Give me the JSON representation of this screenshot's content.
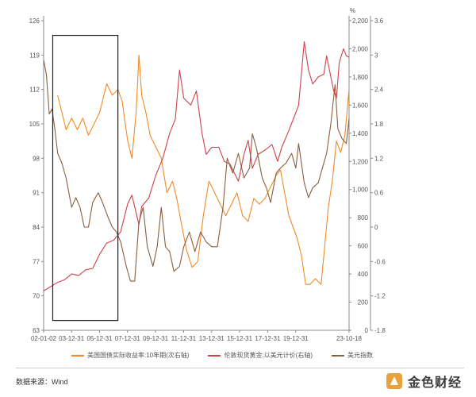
{
  "chart_data": {
    "type": "line",
    "title": "",
    "left_axis": {
      "min": 63,
      "max": 126,
      "ticks": [
        63,
        70,
        77,
        84,
        91,
        98,
        105,
        112,
        119,
        126
      ]
    },
    "right_axis_1": {
      "unit": "",
      "min": 0,
      "max": 2200,
      "ticks": [
        0,
        200,
        400,
        600,
        800,
        "1,000",
        "1,200",
        "1,400",
        "1,600",
        "1,800",
        "2,000",
        "2,200"
      ],
      "tick_values": [
        0,
        200,
        400,
        600,
        800,
        1000,
        1200,
        1400,
        1600,
        1800,
        2000,
        2200
      ]
    },
    "right_axis_2": {
      "unit": "%",
      "min": -1.8,
      "max": 3.6,
      "ticks": [
        -1.8,
        -1.2,
        -0.6,
        0,
        0.6,
        1.2,
        1.8,
        2.4,
        3,
        3.6
      ]
    },
    "x_labels": [
      "02-01-02",
      "03-12-31",
      "05-12-31",
      "07-12-31",
      "09-12-31",
      "11-12-31",
      "13-12-31",
      "15-12-31",
      "17-12-31",
      "19-12-31",
      "23-10-18"
    ],
    "x_range": [
      2002.0,
      2023.8
    ],
    "x_label_positions": [
      2002.0,
      2003.99,
      2005.99,
      2007.99,
      2009.99,
      2011.99,
      2013.99,
      2015.99,
      2017.99,
      2019.99,
      2023.8
    ],
    "highlight_box": {
      "x_start": 2002.65,
      "x_end": 2007.3,
      "y_top": 123,
      "y_bottom": 65
    },
    "series": [
      {
        "name": "美国国债实际收益率:10年期(次右轴)",
        "axis": "right_axis_2",
        "color": "#f08a24",
        "points": [
          [
            2003.0,
            2.3
          ],
          [
            2003.3,
            2.0
          ],
          [
            2003.6,
            1.7
          ],
          [
            2004.0,
            1.9
          ],
          [
            2004.4,
            1.7
          ],
          [
            2004.8,
            1.9
          ],
          [
            2005.2,
            1.6
          ],
          [
            2005.6,
            1.8
          ],
          [
            2006.0,
            2.0
          ],
          [
            2006.5,
            2.5
          ],
          [
            2006.9,
            2.3
          ],
          [
            2007.3,
            2.4
          ],
          [
            2007.6,
            2.2
          ],
          [
            2008.0,
            1.5
          ],
          [
            2008.3,
            1.2
          ],
          [
            2008.6,
            2.0
          ],
          [
            2008.8,
            3.0
          ],
          [
            2009.0,
            2.3
          ],
          [
            2009.3,
            2.0
          ],
          [
            2009.6,
            1.6
          ],
          [
            2010.0,
            1.4
          ],
          [
            2010.4,
            1.2
          ],
          [
            2010.8,
            0.6
          ],
          [
            2011.2,
            0.8
          ],
          [
            2011.5,
            0.5
          ],
          [
            2011.8,
            0.1
          ],
          [
            2012.2,
            -0.4
          ],
          [
            2012.6,
            -0.7
          ],
          [
            2013.0,
            -0.6
          ],
          [
            2013.4,
            0.2
          ],
          [
            2013.8,
            0.8
          ],
          [
            2014.2,
            0.6
          ],
          [
            2014.6,
            0.4
          ],
          [
            2015.0,
            0.2
          ],
          [
            2015.4,
            0.4
          ],
          [
            2015.8,
            0.6
          ],
          [
            2016.2,
            0.2
          ],
          [
            2016.6,
            0.1
          ],
          [
            2017.0,
            0.5
          ],
          [
            2017.4,
            0.4
          ],
          [
            2017.8,
            0.5
          ],
          [
            2018.2,
            0.7
          ],
          [
            2018.6,
            0.9
          ],
          [
            2018.9,
            1.0
          ],
          [
            2019.2,
            0.6
          ],
          [
            2019.5,
            0.2
          ],
          [
            2019.8,
            0.0
          ],
          [
            2020.1,
            -0.2
          ],
          [
            2020.4,
            -0.5
          ],
          [
            2020.7,
            -1.0
          ],
          [
            2021.0,
            -1.0
          ],
          [
            2021.4,
            -0.9
          ],
          [
            2021.8,
            -1.0
          ],
          [
            2022.0,
            -0.5
          ],
          [
            2022.3,
            0.3
          ],
          [
            2022.6,
            0.8
          ],
          [
            2022.9,
            1.5
          ],
          [
            2023.2,
            1.3
          ],
          [
            2023.5,
            1.6
          ],
          [
            2023.8,
            2.4
          ]
        ]
      },
      {
        "name": "伦敦现货黄金:以美元计价(右轴)",
        "axis": "right_axis_1",
        "color": "#d1404a",
        "points": [
          [
            2002.0,
            280
          ],
          [
            2002.5,
            310
          ],
          [
            2003.0,
            340
          ],
          [
            2003.5,
            360
          ],
          [
            2004.0,
            400
          ],
          [
            2004.5,
            390
          ],
          [
            2005.0,
            430
          ],
          [
            2005.5,
            440
          ],
          [
            2006.0,
            540
          ],
          [
            2006.5,
            620
          ],
          [
            2007.0,
            640
          ],
          [
            2007.5,
            700
          ],
          [
            2008.0,
            900
          ],
          [
            2008.3,
            960
          ],
          [
            2008.8,
            750
          ],
          [
            2009.0,
            880
          ],
          [
            2009.5,
            940
          ],
          [
            2010.0,
            1100
          ],
          [
            2010.5,
            1220
          ],
          [
            2011.0,
            1400
          ],
          [
            2011.4,
            1500
          ],
          [
            2011.7,
            1850
          ],
          [
            2012.0,
            1650
          ],
          [
            2012.5,
            1600
          ],
          [
            2012.9,
            1700
          ],
          [
            2013.3,
            1400
          ],
          [
            2013.6,
            1250
          ],
          [
            2014.0,
            1300
          ],
          [
            2014.5,
            1300
          ],
          [
            2014.9,
            1200
          ],
          [
            2015.3,
            1180
          ],
          [
            2015.9,
            1060
          ],
          [
            2016.3,
            1250
          ],
          [
            2016.6,
            1350
          ],
          [
            2016.9,
            1150
          ],
          [
            2017.3,
            1250
          ],
          [
            2017.8,
            1280
          ],
          [
            2018.3,
            1320
          ],
          [
            2018.7,
            1200
          ],
          [
            2019.0,
            1300
          ],
          [
            2019.5,
            1420
          ],
          [
            2019.9,
            1520
          ],
          [
            2020.2,
            1600
          ],
          [
            2020.6,
            2050
          ],
          [
            2020.9,
            1850
          ],
          [
            2021.2,
            1750
          ],
          [
            2021.6,
            1800
          ],
          [
            2022.0,
            1820
          ],
          [
            2022.2,
            1950
          ],
          [
            2022.7,
            1700
          ],
          [
            2022.9,
            1650
          ],
          [
            2023.1,
            1900
          ],
          [
            2023.4,
            2000
          ],
          [
            2023.6,
            1950
          ],
          [
            2023.8,
            1940
          ]
        ]
      },
      {
        "name": "美元指数",
        "axis": "left_axis",
        "color": "#8b5e3c",
        "points": [
          [
            2002.0,
            118
          ],
          [
            2002.2,
            115
          ],
          [
            2002.4,
            107
          ],
          [
            2002.6,
            108
          ],
          [
            2002.8,
            104
          ],
          [
            2003.0,
            99
          ],
          [
            2003.3,
            97
          ],
          [
            2003.6,
            94
          ],
          [
            2004.0,
            88
          ],
          [
            2004.3,
            90
          ],
          [
            2004.6,
            88
          ],
          [
            2004.9,
            84
          ],
          [
            2005.2,
            84
          ],
          [
            2005.5,
            89
          ],
          [
            2005.9,
            91
          ],
          [
            2006.2,
            89
          ],
          [
            2006.6,
            86
          ],
          [
            2006.9,
            84
          ],
          [
            2007.2,
            83
          ],
          [
            2007.5,
            81
          ],
          [
            2007.9,
            76
          ],
          [
            2008.2,
            73
          ],
          [
            2008.5,
            73
          ],
          [
            2008.8,
            85
          ],
          [
            2009.1,
            88
          ],
          [
            2009.4,
            80
          ],
          [
            2009.8,
            76
          ],
          [
            2010.1,
            80
          ],
          [
            2010.4,
            88
          ],
          [
            2010.7,
            80
          ],
          [
            2011.0,
            79
          ],
          [
            2011.3,
            75
          ],
          [
            2011.7,
            76
          ],
          [
            2012.0,
            80
          ],
          [
            2012.4,
            83
          ],
          [
            2012.8,
            79
          ],
          [
            2013.2,
            83
          ],
          [
            2013.6,
            81
          ],
          [
            2014.0,
            80
          ],
          [
            2014.4,
            80
          ],
          [
            2014.8,
            88
          ],
          [
            2015.1,
            98
          ],
          [
            2015.5,
            95
          ],
          [
            2015.9,
            99
          ],
          [
            2016.3,
            94
          ],
          [
            2016.7,
            96
          ],
          [
            2016.9,
            103
          ],
          [
            2017.2,
            100
          ],
          [
            2017.6,
            94
          ],
          [
            2017.9,
            92
          ],
          [
            2018.2,
            89
          ],
          [
            2018.6,
            95
          ],
          [
            2018.9,
            96
          ],
          [
            2019.3,
            97
          ],
          [
            2019.7,
            99
          ],
          [
            2020.0,
            96
          ],
          [
            2020.2,
            101
          ],
          [
            2020.6,
            93
          ],
          [
            2020.9,
            90
          ],
          [
            2021.2,
            92
          ],
          [
            2021.6,
            93
          ],
          [
            2021.9,
            96
          ],
          [
            2022.2,
            99
          ],
          [
            2022.5,
            105
          ],
          [
            2022.8,
            113
          ],
          [
            2023.0,
            104
          ],
          [
            2023.3,
            102
          ],
          [
            2023.6,
            101
          ],
          [
            2023.8,
            106
          ]
        ]
      }
    ]
  },
  "footer": {
    "source_text": "数据来源：Wind",
    "watermark": "金色财经"
  },
  "colors": {
    "axis": "#888888",
    "box": "#222222"
  }
}
